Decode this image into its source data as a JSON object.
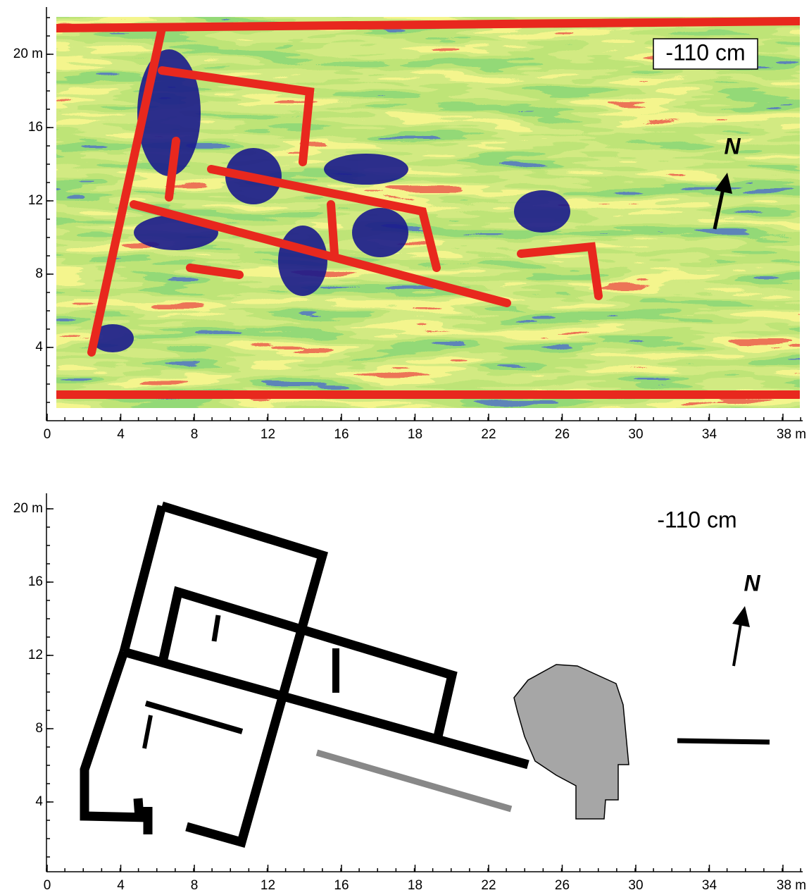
{
  "panels": [
    {
      "depth": "-110 cm",
      "north": "N",
      "x_axis_labels": [
        "0",
        "4",
        "8",
        "12",
        "16",
        "18",
        "22",
        "26",
        "30",
        "34",
        "38 m"
      ],
      "y_axis_labels": [
        "20 m",
        "16",
        "12",
        "8",
        "4"
      ]
    },
    {
      "depth": "-110 cm",
      "north": "N",
      "x_axis_labels": [
        "0",
        "4",
        "8",
        "12",
        "16",
        "18",
        "22",
        "26",
        "30",
        "34",
        "38 m"
      ],
      "y_axis_labels": [
        "20 m",
        "16",
        "12",
        "8",
        "4"
      ]
    }
  ]
}
